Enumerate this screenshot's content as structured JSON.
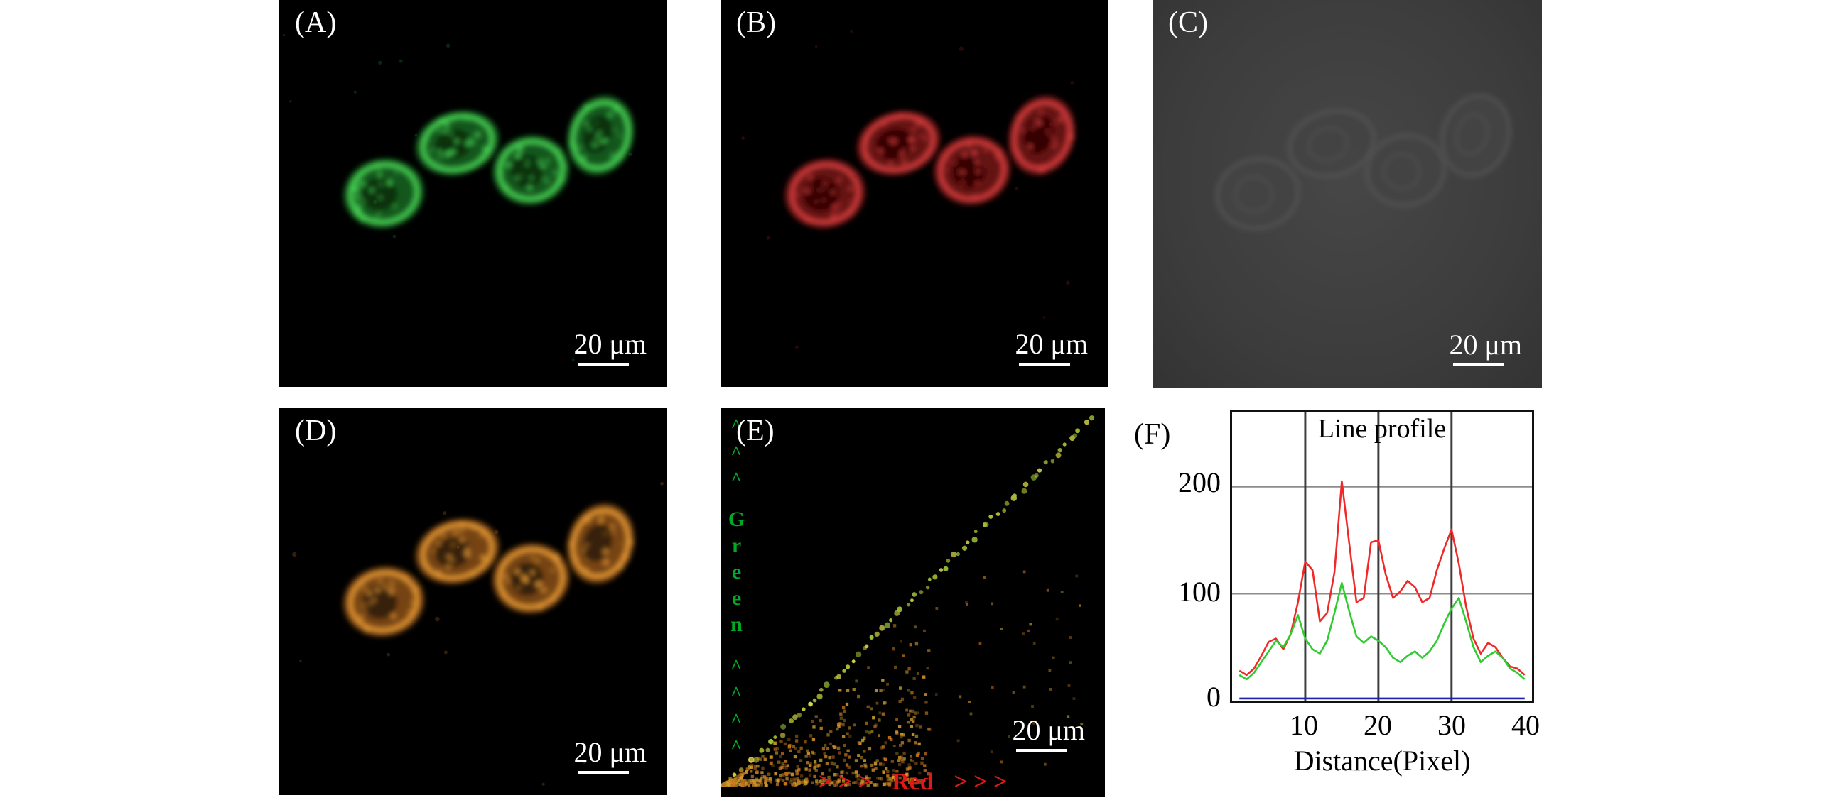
{
  "panels": {
    "a": {
      "label": "(A)",
      "scale_bar": "20 μm"
    },
    "b": {
      "label": "(B)",
      "scale_bar": "20 μm"
    },
    "c": {
      "label": "(C)",
      "scale_bar": "20 μm"
    },
    "d": {
      "label": "(D)",
      "scale_bar": "20 μm"
    },
    "e": {
      "label": "(E)",
      "scale_bar": "20 μm",
      "y_axis_label": "Green",
      "y_axis_chevrons_top": "^\n^\n^",
      "y_axis_chevrons_bottom": "^\n^\n^\n^",
      "x_axis_label": "Red",
      "x_axis_chevrons_left": "> > >",
      "x_axis_chevrons_right": "> > >"
    },
    "f": {
      "label": "(F)"
    }
  },
  "colors": {
    "panel_a": {
      "outer": "#1e7c2a",
      "bright": "#4ade58",
      "dark": "#06300d"
    },
    "panel_b": {
      "outer": "#8f1a1a",
      "bright": "#e04040",
      "dark": "#300606"
    },
    "panel_c": {
      "fill": "#444444",
      "stroke": "#565656"
    },
    "panel_d": {
      "outer": "#a86018",
      "bright": "#f0a038",
      "dark": "#35200a"
    },
    "scatter": {
      "diag": [
        "#b8c832",
        "#d8d84a",
        "#9fc23a"
      ],
      "cluster": [
        "#c87820",
        "#d89830",
        "#b06a18",
        "#caa32a"
      ]
    },
    "e_green_label": "#00aa22",
    "e_red_label": "#e01818"
  },
  "chart_data": {
    "type": "line",
    "title": "Line profile",
    "xlabel": "Distance(Pixel)",
    "ylabel": "",
    "xlim": [
      0,
      41
    ],
    "ylim": [
      0,
      270
    ],
    "x_ticks": [
      10,
      20,
      30,
      40
    ],
    "y_ticks": [
      0,
      100,
      200
    ],
    "grid_x": [
      10,
      20,
      30
    ],
    "grid_y": [
      100,
      200
    ],
    "legend": "none",
    "x": [
      1,
      2,
      3,
      4,
      5,
      6,
      7,
      8,
      9,
      10,
      11,
      12,
      13,
      14,
      15,
      16,
      17,
      18,
      19,
      20,
      21,
      22,
      23,
      24,
      25,
      26,
      27,
      28,
      29,
      30,
      31,
      32,
      33,
      34,
      35,
      36,
      37,
      38,
      39,
      40
    ],
    "series": [
      {
        "name": "red",
        "color": "#f02828",
        "values": [
          28,
          24,
          30,
          42,
          55,
          58,
          48,
          62,
          92,
          130,
          122,
          74,
          82,
          120,
          205,
          148,
          92,
          96,
          148,
          150,
          118,
          96,
          102,
          112,
          106,
          92,
          96,
          122,
          142,
          160,
          128,
          88,
          58,
          44,
          54,
          50,
          40,
          32,
          30,
          24
        ]
      },
      {
        "name": "green",
        "color": "#2ecc2e",
        "values": [
          24,
          20,
          26,
          36,
          46,
          56,
          50,
          62,
          80,
          58,
          48,
          44,
          56,
          82,
          110,
          84,
          60,
          54,
          60,
          56,
          50,
          40,
          36,
          42,
          46,
          40,
          46,
          56,
          72,
          86,
          96,
          74,
          50,
          36,
          42,
          46,
          40,
          30,
          26,
          20
        ]
      },
      {
        "name": "blue",
        "color": "#2222b0",
        "values": [
          2,
          2,
          2,
          2,
          2,
          2,
          2,
          2,
          2,
          2,
          2,
          2,
          2,
          2,
          2,
          2,
          2,
          2,
          2,
          2,
          2,
          2,
          2,
          2,
          2,
          2,
          2,
          2,
          2,
          2,
          2,
          2,
          2,
          2,
          2,
          2,
          2,
          2,
          2,
          2
        ]
      }
    ]
  }
}
